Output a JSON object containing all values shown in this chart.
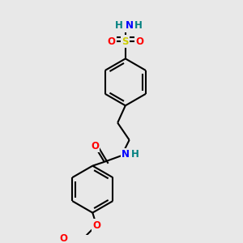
{
  "background_color": "#e8e8e8",
  "atom_colors": {
    "C": "#000000",
    "N": "#0000ff",
    "O": "#ff0000",
    "S": "#cccc00",
    "H": "#008080"
  },
  "bond_color": "#000000",
  "bond_width": 1.5,
  "font_size": 8.5,
  "figsize": [
    3.0,
    3.0
  ],
  "dpi": 100
}
